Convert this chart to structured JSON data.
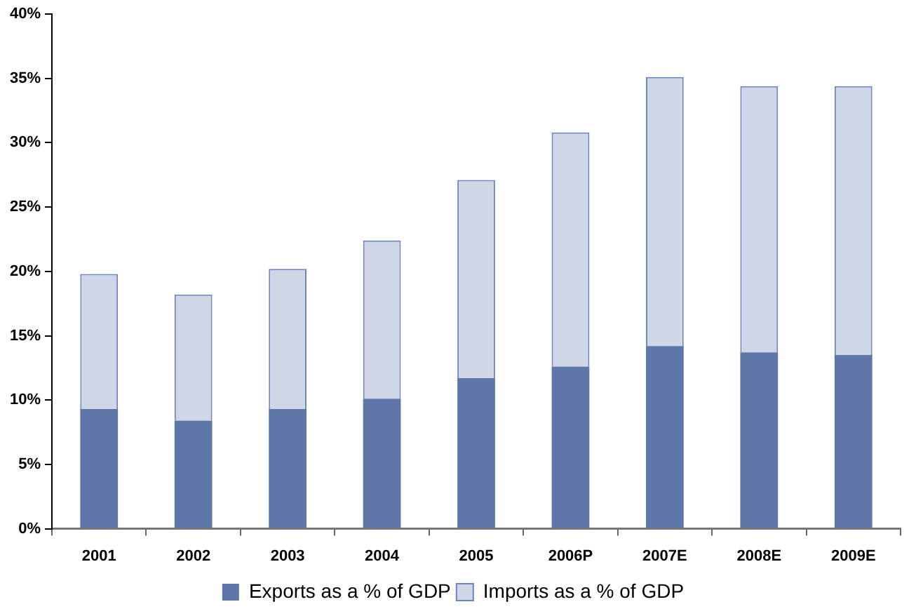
{
  "chart_data": {
    "type": "bar",
    "stacked": true,
    "categories": [
      "2001",
      "2002",
      "2003",
      "2004",
      "2005",
      "2006P",
      "2007E",
      "2008E",
      "2009E"
    ],
    "series": [
      {
        "name": "Exports as a % of GDP",
        "color": "#5f76a8",
        "values": [
          9.3,
          8.4,
          9.3,
          10.1,
          11.7,
          12.6,
          14.2,
          13.7,
          13.5
        ]
      },
      {
        "name": "Imports as a % of GDP",
        "color": "#cfd6e6",
        "values": [
          10.5,
          9.8,
          10.9,
          12.3,
          15.4,
          18.2,
          20.9,
          20.7,
          20.9
        ]
      }
    ],
    "ylim": [
      0,
      40
    ],
    "yticks": [
      {
        "value": 0,
        "label": "0%"
      },
      {
        "value": 5,
        "label": "5%"
      },
      {
        "value": 10,
        "label": "10%"
      },
      {
        "value": 15,
        "label": "15%"
      },
      {
        "value": 20,
        "label": "20%"
      },
      {
        "value": 25,
        "label": "25%"
      },
      {
        "value": 30,
        "label": "30%"
      },
      {
        "value": 35,
        "label": "35%"
      },
      {
        "value": 40,
        "label": "40%"
      }
    ],
    "grid": false,
    "legend": "bottom"
  }
}
